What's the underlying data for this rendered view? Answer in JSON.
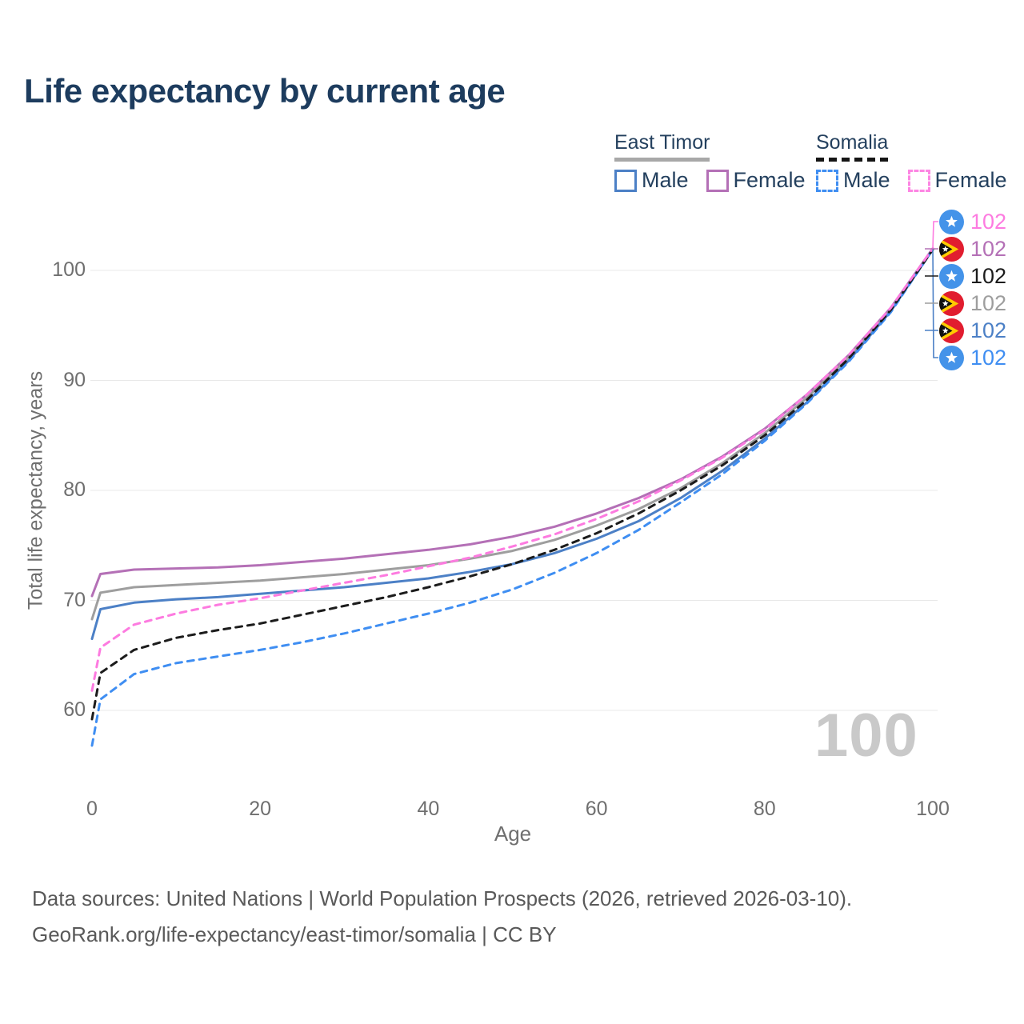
{
  "title": "Life expectancy by current age",
  "legend": {
    "groups": [
      {
        "name": "East Timor",
        "line_color": "#a8a8a8",
        "line_style": "solid",
        "items": [
          {
            "label": "Male",
            "color": "#4c80c6",
            "style": "solid"
          },
          {
            "label": "Female",
            "color": "#b470b6",
            "style": "solid"
          }
        ]
      },
      {
        "name": "Somalia",
        "line_color": "#151515",
        "line_style": "dashed",
        "items": [
          {
            "label": "Male",
            "color": "#3f8ef2",
            "style": "dashed"
          },
          {
            "label": "Female",
            "color": "#fd86e3",
            "style": "dashed"
          }
        ]
      }
    ]
  },
  "chart_data": {
    "type": "line",
    "title": "Life expectancy by current age",
    "xlabel": "Age",
    "ylabel": "Total life expectancy, years",
    "xlim": [
      0,
      100
    ],
    "ylim": [
      56,
      104
    ],
    "xticks": [
      0,
      20,
      40,
      60,
      80,
      100
    ],
    "yticks": [
      60,
      70,
      80,
      90,
      100
    ],
    "grid": "horizontal",
    "legend_position": "top-right",
    "x": [
      0,
      1,
      5,
      10,
      15,
      20,
      25,
      30,
      35,
      40,
      45,
      50,
      55,
      60,
      65,
      70,
      75,
      80,
      85,
      90,
      95,
      100
    ],
    "series": [
      {
        "name": "East Timor Female",
        "country": "east-timor",
        "sex": "female",
        "color": "#b470b6",
        "style": "solid",
        "end_value": 102,
        "values": [
          70.4,
          72.4,
          72.8,
          72.9,
          73.0,
          73.2,
          73.5,
          73.8,
          74.2,
          74.6,
          75.1,
          75.8,
          76.7,
          77.9,
          79.3,
          81.0,
          83.1,
          85.6,
          88.7,
          92.3,
          96.6,
          102.0
        ]
      },
      {
        "name": "East Timor Both sexes",
        "country": "east-timor",
        "sex": "both",
        "color": "#9e9e9e",
        "style": "solid",
        "end_value": 102,
        "values": [
          68.3,
          70.7,
          71.2,
          71.4,
          71.6,
          71.8,
          72.1,
          72.4,
          72.8,
          73.2,
          73.8,
          74.5,
          75.5,
          76.8,
          78.3,
          80.2,
          82.5,
          85.2,
          88.4,
          92.1,
          96.4,
          101.9
        ]
      },
      {
        "name": "East Timor Male",
        "country": "east-timor",
        "sex": "male",
        "color": "#4c80c6",
        "style": "solid",
        "end_value": 102,
        "values": [
          66.5,
          69.2,
          69.8,
          70.1,
          70.3,
          70.6,
          70.9,
          71.2,
          71.6,
          72.0,
          72.6,
          73.3,
          74.3,
          75.6,
          77.2,
          79.3,
          81.8,
          84.7,
          88.0,
          91.8,
          96.3,
          101.9
        ]
      },
      {
        "name": "Somalia Male",
        "country": "somalia",
        "sex": "male",
        "color": "#3f8ef2",
        "style": "dashed",
        "end_value": 102,
        "values": [
          56.8,
          61.0,
          63.3,
          64.3,
          64.9,
          65.5,
          66.2,
          67.0,
          67.9,
          68.8,
          69.8,
          71.0,
          72.5,
          74.3,
          76.4,
          78.9,
          81.5,
          84.5,
          87.9,
          91.7,
          96.2,
          101.9
        ]
      },
      {
        "name": "Somalia Both sexes",
        "country": "somalia",
        "sex": "both",
        "color": "#1c1c1c",
        "style": "dashed",
        "end_value": 102,
        "values": [
          59.2,
          63.4,
          65.5,
          66.6,
          67.3,
          67.9,
          68.7,
          69.5,
          70.3,
          71.2,
          72.2,
          73.3,
          74.6,
          76.1,
          77.9,
          80.0,
          82.3,
          85.0,
          88.2,
          92.0,
          96.4,
          101.9
        ]
      },
      {
        "name": "Somalia Female",
        "country": "somalia",
        "sex": "female",
        "color": "#fd7be0",
        "style": "dashed",
        "end_value": 102,
        "values": [
          61.8,
          65.7,
          67.8,
          68.8,
          69.6,
          70.2,
          70.9,
          71.6,
          72.3,
          73.1,
          73.9,
          74.9,
          76.0,
          77.4,
          79.0,
          80.9,
          83.0,
          85.5,
          88.7,
          92.3,
          96.6,
          102.0
        ]
      }
    ]
  },
  "end_labels": [
    {
      "country": "somalia",
      "value": "102",
      "color": "#fd7be0"
    },
    {
      "country": "east-timor",
      "value": "102",
      "color": "#b470b6"
    },
    {
      "country": "somalia",
      "value": "102",
      "color": "#1c1c1c"
    },
    {
      "country": "east-timor",
      "value": "102",
      "color": "#9e9e9e"
    },
    {
      "country": "east-timor",
      "value": "102",
      "color": "#4c80c6"
    },
    {
      "country": "somalia",
      "value": "102",
      "color": "#3f8ef2"
    }
  ],
  "watermark": "100",
  "footer": {
    "line1": "Data sources: United Nations | World Population Prospects (2026, retrieved 2026-03-10).",
    "line2": "GeoRank.org/life-expectancy/east-timor/somalia | CC BY"
  }
}
